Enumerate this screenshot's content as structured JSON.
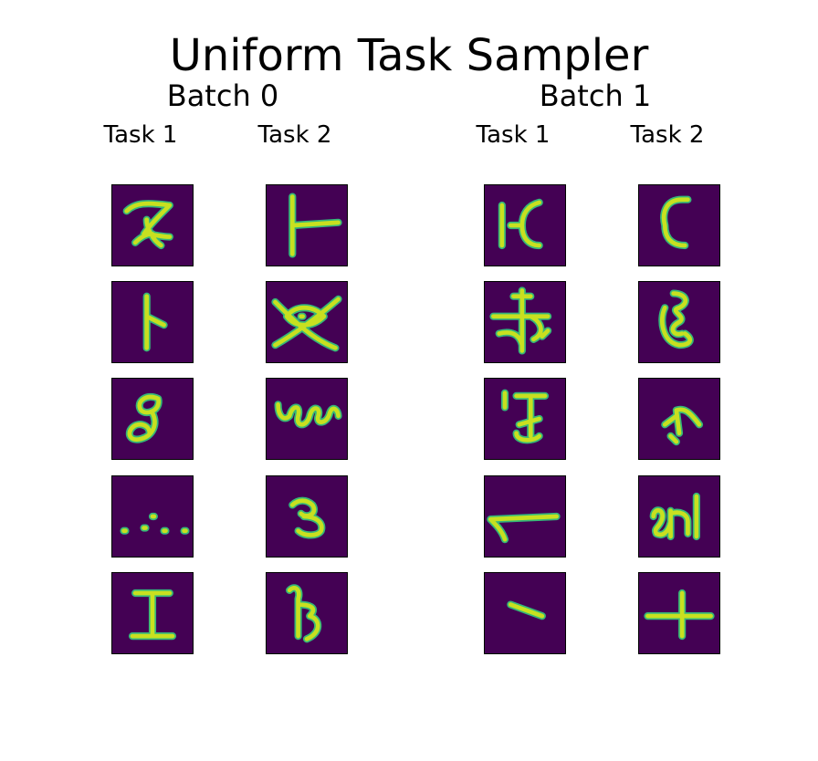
{
  "figure": {
    "title": "Uniform Task Sampler",
    "batches": [
      {
        "label": "Batch 0",
        "tasks": [
          {
            "label": "Task 1",
            "glyphs": [
              "curly-z-glyph",
              "flag-glyph",
              "loop-nine-glyph",
              "dots-glyph",
              "i-beam-glyph"
            ]
          },
          {
            "label": "Task 2",
            "glyphs": [
              "t-bar-glyph",
              "crossed-loops-glyph",
              "coil-glyph",
              "swirl-glyph",
              "hook-b-glyph"
            ]
          }
        ]
      },
      {
        "label": "Batch 1",
        "tasks": [
          {
            "label": "Task 1",
            "glyphs": [
              "bar-c-glyph",
              "crossed-hook-glyph",
              "serif-i-glyph",
              "hook-line-glyph",
              "slash-glyph"
            ]
          },
          {
            "label": "Task 2",
            "glyphs": [
              "c-glyph",
              "squiggle-glyph",
              "chevron-glyph",
              "loop-m-glyph",
              "cross-glyph"
            ]
          }
        ]
      }
    ],
    "colors": {
      "tile_background": "#440154",
      "stroke": "#c8e020",
      "stroke_edge": "#35b779",
      "border": "#000000"
    }
  }
}
